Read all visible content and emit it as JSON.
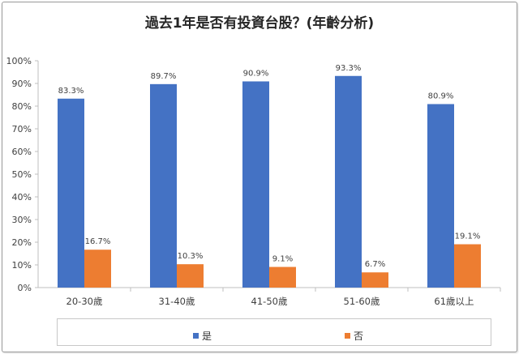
{
  "chart_data": {
    "type": "bar",
    "title": "過去1年是否有投資台股？(年齡分析)",
    "categories": [
      "20-30歲",
      "31-40歲",
      "41-50歲",
      "51-60歲",
      "61歲以上"
    ],
    "series": [
      {
        "name": "是",
        "color": "#4472C4",
        "values": [
          83.3,
          89.7,
          90.9,
          93.3,
          80.9
        ],
        "labels": [
          "83.3%",
          "89.7%",
          "90.9%",
          "93.3%",
          "80.9%"
        ]
      },
      {
        "name": "否",
        "color": "#ED7D31",
        "values": [
          16.7,
          10.3,
          9.1,
          6.7,
          19.1
        ],
        "labels": [
          "16.7%",
          "10.3%",
          "9.1%",
          "6.7%",
          "19.1%"
        ]
      }
    ],
    "ylim": [
      0,
      100
    ],
    "yticks": [
      "0%",
      "10%",
      "20%",
      "30%",
      "40%",
      "50%",
      "60%",
      "70%",
      "80%",
      "90%",
      "100%"
    ],
    "grid": false,
    "legend_position": "bottom"
  }
}
